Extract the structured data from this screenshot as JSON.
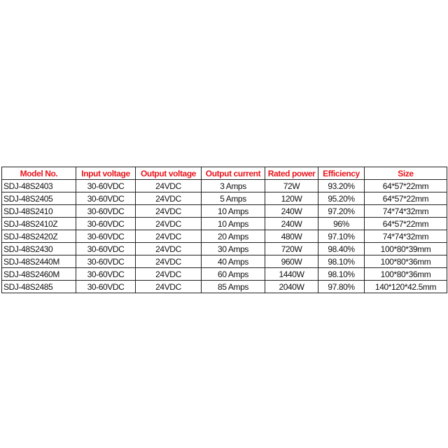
{
  "table": {
    "header": [
      "Model No.",
      "Input voltage",
      "Output voltage",
      "Output current",
      "Rated power",
      "Efficiency",
      "Size"
    ],
    "rows": [
      [
        "SDJ-48S2403",
        "30-60VDC",
        "24VDC",
        "3 Amps",
        "72W",
        "93.20%",
        "64*57*22mm"
      ],
      [
        "SDJ-48S2405",
        "30-60VDC",
        "24VDC",
        "5 Amps",
        "120W",
        "95.20%",
        "64*57*22mm"
      ],
      [
        "SDJ-48S2410",
        "30-60VDC",
        "24VDC",
        "10 Amps",
        "240W",
        "97.20%",
        "74*74*32mm"
      ],
      [
        "SDJ-48S2410Z",
        "30-60VDC",
        "24VDC",
        "10 Amps",
        "240W",
        "96%",
        "64*57*22mm"
      ],
      [
        "SDJ-48S2420Z",
        "30-60VDC",
        "24VDC",
        "20 Amps",
        "480W",
        "97.10%",
        "74*74*32mm"
      ],
      [
        "SDJ-48S2430",
        "30-60VDC",
        "24VDC",
        "30 Amps",
        "720W",
        "98.40%",
        "100*80*39mm"
      ],
      [
        "SDJ-48S2440M",
        "30-60VDC",
        "24VDC",
        "40 Amps",
        "960W",
        "98.10%",
        "100*80*36mm"
      ],
      [
        "SDJ-48S2460M",
        "30-60VDC",
        "24VDC",
        "60 Amps",
        "1440W",
        "98.10%",
        "100*80*36mm"
      ],
      [
        "SDJ-48S2485",
        "30-60VDC",
        "24VDC",
        "85 Amps",
        "2040W",
        "97.80%",
        "140*120*42.5mm"
      ]
    ]
  }
}
